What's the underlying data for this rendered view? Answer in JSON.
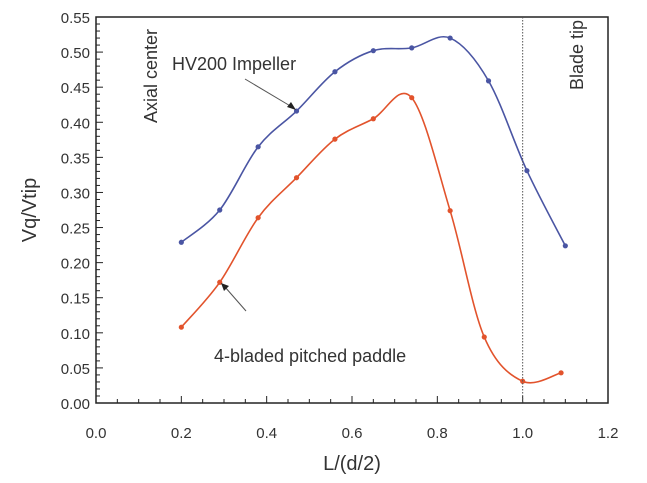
{
  "chart_data": {
    "type": "line",
    "title": "",
    "xlabel": "L/(d/2)",
    "ylabel": "Vq/Vtip",
    "xlim": [
      0.0,
      1.2
    ],
    "ylim": [
      0.0,
      0.55
    ],
    "x_ticks": [
      "0.0",
      "0.2",
      "0.4",
      "0.6",
      "0.8",
      "1.0",
      "1.2"
    ],
    "y_ticks": [
      "0.00",
      "0.05",
      "0.10",
      "0.15",
      "0.20",
      "0.25",
      "0.30",
      "0.35",
      "0.40",
      "0.45",
      "0.50",
      "0.55"
    ],
    "grid": false,
    "series": [
      {
        "name": "HV200 Impeller",
        "color": "#4a55a3",
        "x": [
          0.2,
          0.29,
          0.38,
          0.47,
          0.56,
          0.65,
          0.74,
          0.83,
          0.92,
          1.01,
          1.1
        ],
        "y": [
          0.229,
          0.275,
          0.365,
          0.416,
          0.472,
          0.502,
          0.506,
          0.52,
          0.459,
          0.331,
          0.224
        ]
      },
      {
        "name": "4-bladed pitched paddle",
        "color": "#e2532c",
        "x": [
          0.2,
          0.29,
          0.38,
          0.47,
          0.56,
          0.65,
          0.74,
          0.83,
          0.91,
          1.0,
          1.09
        ],
        "y": [
          0.108,
          0.172,
          0.264,
          0.321,
          0.376,
          0.405,
          0.435,
          0.274,
          0.094,
          0.031,
          0.043
        ]
      }
    ],
    "annotations": {
      "axial_center": "Axial center",
      "blade_tip": "Blade tip",
      "blade_tip_x": 1.0,
      "hv200_label": "HV200 Impeller",
      "paddle_label": "4-bladed pitched paddle"
    }
  }
}
